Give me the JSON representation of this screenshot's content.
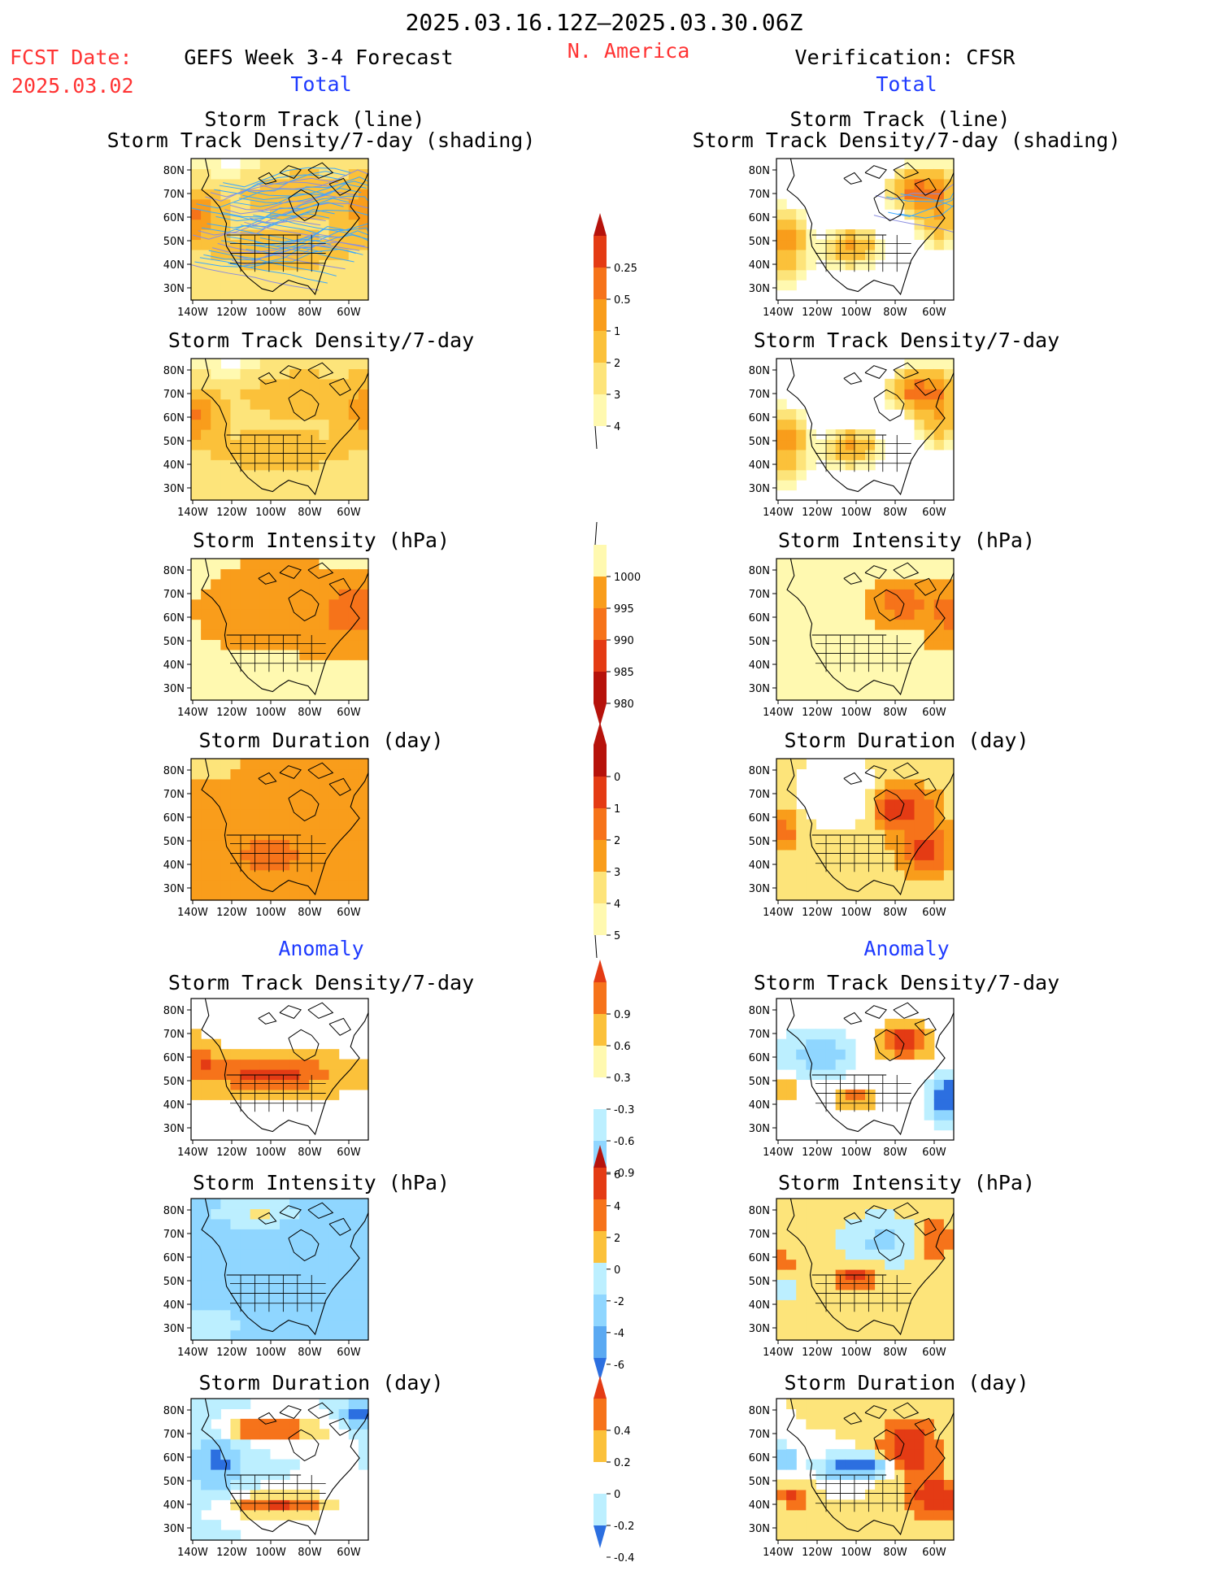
{
  "header": {
    "date_range": "2025.03.16.12Z–2025.03.30.06Z",
    "fcst_label": "FCST Date:",
    "fcst_date": "2025.03.02",
    "forecast_title": "GEFS Week 3-4 Forecast",
    "region": "N. America",
    "verification": "Verification: CFSR",
    "total_left": "Total",
    "total_right": "Total",
    "anomaly_left": "Anomaly",
    "anomaly_right": "Anomaly"
  },
  "panel_titles": {
    "track_line": "Storm Track (line)",
    "track_shading": "Storm Track Density/7-day (shading)",
    "density": "Storm Track Density/7-day",
    "intensity": "Storm Intensity (hPa)",
    "duration": "Storm Duration (day)"
  },
  "axes": {
    "lat_ticks": [
      "80N",
      "70N",
      "60N",
      "50N",
      "40N",
      "30N"
    ],
    "lon_ticks": [
      "140W",
      "120W",
      "100W",
      "80W",
      "60W"
    ]
  },
  "colors": {
    "title_red": "#ff3333",
    "title_blue": "#1f3bff",
    "warm": [
      "#fff9b0",
      "#fde47a",
      "#fbc13a",
      "#f99d1b",
      "#f6731a",
      "#e43b14",
      "#b6120b"
    ],
    "cool": [
      "#bcefff",
      "#8fd6ff",
      "#5aa9f2",
      "#2c6fe0"
    ],
    "track_lines": "#3aa8ff"
  },
  "chart_data": [
    {
      "id": "density_colorbar",
      "type": "heatmap",
      "title": "Storm Track Density/7-day",
      "levels": [
        "0.25",
        "0.5",
        "1",
        "2",
        "3",
        "4"
      ]
    },
    {
      "id": "intensity_colorbar",
      "type": "heatmap",
      "title": "Storm Intensity (hPa)",
      "levels": [
        "1000",
        "995",
        "990",
        "985",
        "980"
      ]
    },
    {
      "id": "duration_colorbar",
      "type": "heatmap",
      "title": "Storm Duration (day)",
      "levels": [
        "0",
        "1",
        "2",
        "3",
        "4",
        "5"
      ]
    },
    {
      "id": "density_anom_colorbar",
      "type": "heatmap",
      "title": "Storm Track Density/7-day anomaly",
      "levels": [
        "0.9",
        "0.6",
        "0.3",
        "-0.3",
        "-0.6",
        "-0.9"
      ]
    },
    {
      "id": "intensity_anom_colorbar",
      "type": "heatmap",
      "title": "Storm Intensity anomaly",
      "levels": [
        "6",
        "4",
        "2",
        "0",
        "-2",
        "-4",
        "-6"
      ]
    },
    {
      "id": "duration_anom_colorbar",
      "type": "heatmap",
      "title": "Storm Duration anomaly",
      "levels": [
        "0.4",
        "0.2",
        "0",
        "-0.2",
        "-0.4"
      ]
    }
  ]
}
